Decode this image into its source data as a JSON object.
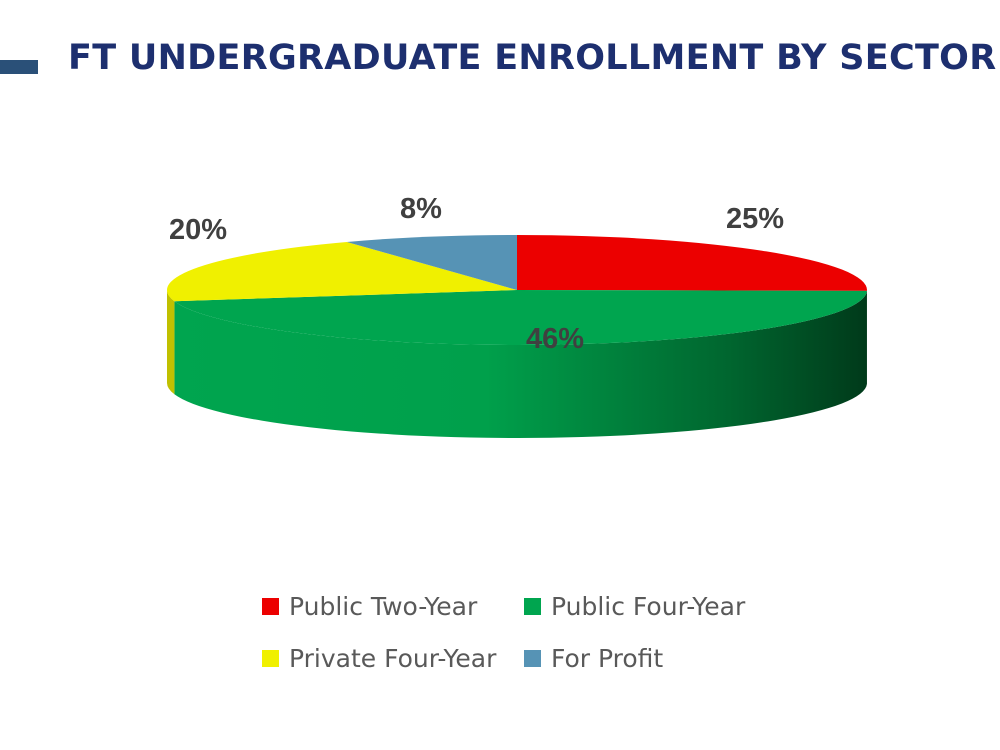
{
  "title": "FT UNDERGRADUATE ENROLLMENT BY SECTOR",
  "chart_data": {
    "type": "pie",
    "style": "3d",
    "categories": [
      "Public Two-Year",
      "Public Four-Year",
      "Private Four-Year",
      "For Profit"
    ],
    "values": [
      25,
      46,
      20,
      8
    ],
    "labels": [
      "25%",
      "46%",
      "20%",
      "8%"
    ],
    "colors": [
      "#ec0000",
      "#00a54f",
      "#f0f000",
      "#5693b5"
    ],
    "legend": "bottom"
  }
}
